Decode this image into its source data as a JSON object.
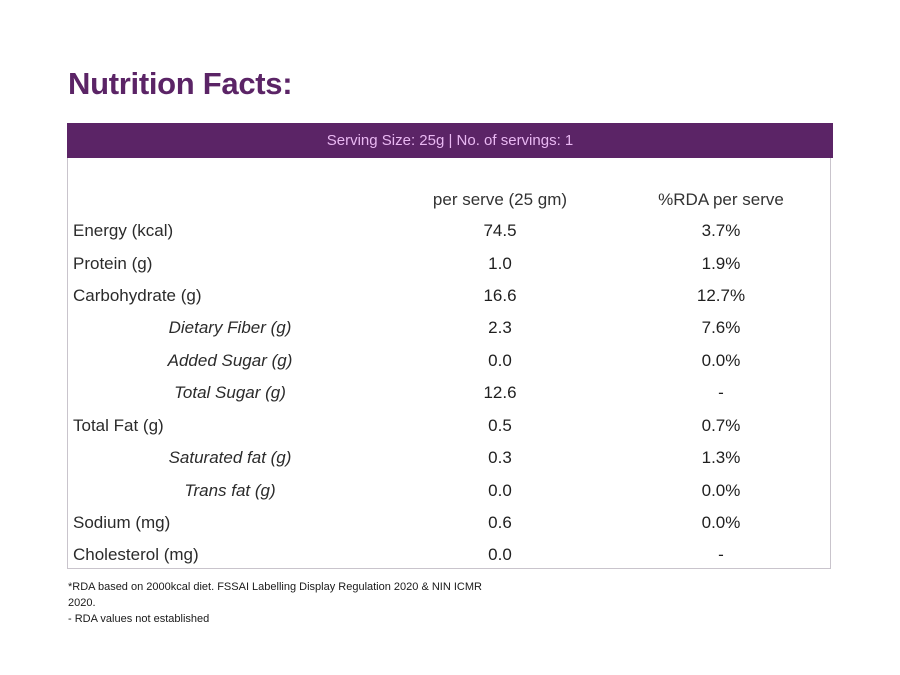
{
  "title": "Nutrition Facts:",
  "serving": "Serving Size: 25g | No. of servings: 1",
  "columns": {
    "per_serve": "per serve (25 gm)",
    "rda": "%RDA per serve"
  },
  "rows": [
    {
      "label": "Energy (kcal)",
      "per_serve": "74.5",
      "rda": "3.7%"
    },
    {
      "label": "Protein (g)",
      "per_serve": "1.0",
      "rda": "1.9%"
    },
    {
      "label": "Carbohydrate (g)",
      "per_serve": "16.6",
      "rda": "12.7%"
    },
    {
      "label": "Dietary Fiber (g)",
      "per_serve": "2.3",
      "rda": "7.6%"
    },
    {
      "label": "Added Sugar (g)",
      "per_serve": "0.0",
      "rda": "0.0%"
    },
    {
      "label": "Total Sugar (g)",
      "per_serve": "12.6",
      "rda": "-"
    },
    {
      "label": "Total Fat (g)",
      "per_serve": "0.5",
      "rda": "0.7%"
    },
    {
      "label": "Saturated fat (g)",
      "per_serve": "0.3",
      "rda": "1.3%"
    },
    {
      "label": "Trans fat (g)",
      "per_serve": "0.0",
      "rda": "0.0%"
    },
    {
      "label": "Sodium (mg)",
      "per_serve": "0.6",
      "rda": "0.0%"
    },
    {
      "label": "Cholesterol (mg)",
      "per_serve": "0.0",
      "rda": "-"
    }
  ],
  "footnote": {
    "line1": "*RDA based on 2000kcal diet. FSSAI Labelling Display Regulation 2020 & NIN ICMR 2020.",
    "line2": "- RDA values not established"
  }
}
